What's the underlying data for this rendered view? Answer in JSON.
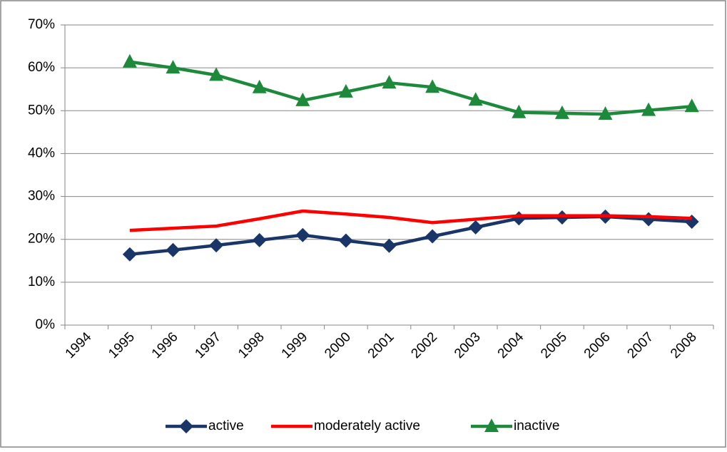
{
  "chart_data": {
    "type": "line",
    "categories": [
      "1994",
      "1995",
      "1996",
      "1997",
      "1998",
      "1999",
      "2000",
      "2001",
      "2002",
      "2003",
      "2004",
      "2005",
      "2006",
      "2007",
      "2008"
    ],
    "series": [
      {
        "name": "active",
        "color": "#1a3668",
        "marker": "diamond",
        "values": [
          null,
          16.5,
          17.5,
          18.6,
          19.8,
          21.0,
          19.7,
          18.5,
          20.7,
          22.8,
          24.9,
          25.1,
          25.3,
          24.7,
          24.1
        ]
      },
      {
        "name": "moderately active",
        "color": "#ff0000",
        "marker": "none",
        "values": [
          null,
          22.1,
          22.6,
          23.1,
          24.8,
          26.6,
          25.9,
          25.1,
          23.9,
          24.7,
          25.5,
          25.5,
          25.5,
          25.3,
          24.9
        ]
      },
      {
        "name": "inactive",
        "color": "#1d8a3b",
        "marker": "triangle",
        "values": [
          null,
          61.4,
          60.0,
          58.3,
          55.4,
          52.4,
          54.4,
          56.5,
          55.5,
          52.5,
          49.6,
          49.4,
          49.2,
          50.1,
          51.0
        ]
      }
    ],
    "ylim": [
      0,
      70
    ],
    "yticks": [
      {
        "value": 0,
        "label": "0%"
      },
      {
        "value": 10,
        "label": "10%"
      },
      {
        "value": 20,
        "label": "20%"
      },
      {
        "value": 30,
        "label": "30%"
      },
      {
        "value": 40,
        "label": "40%"
      },
      {
        "value": 50,
        "label": "50%"
      },
      {
        "value": 60,
        "label": "60%"
      },
      {
        "value": 70,
        "label": "70%"
      }
    ],
    "grid": true,
    "legend": "bottom"
  }
}
